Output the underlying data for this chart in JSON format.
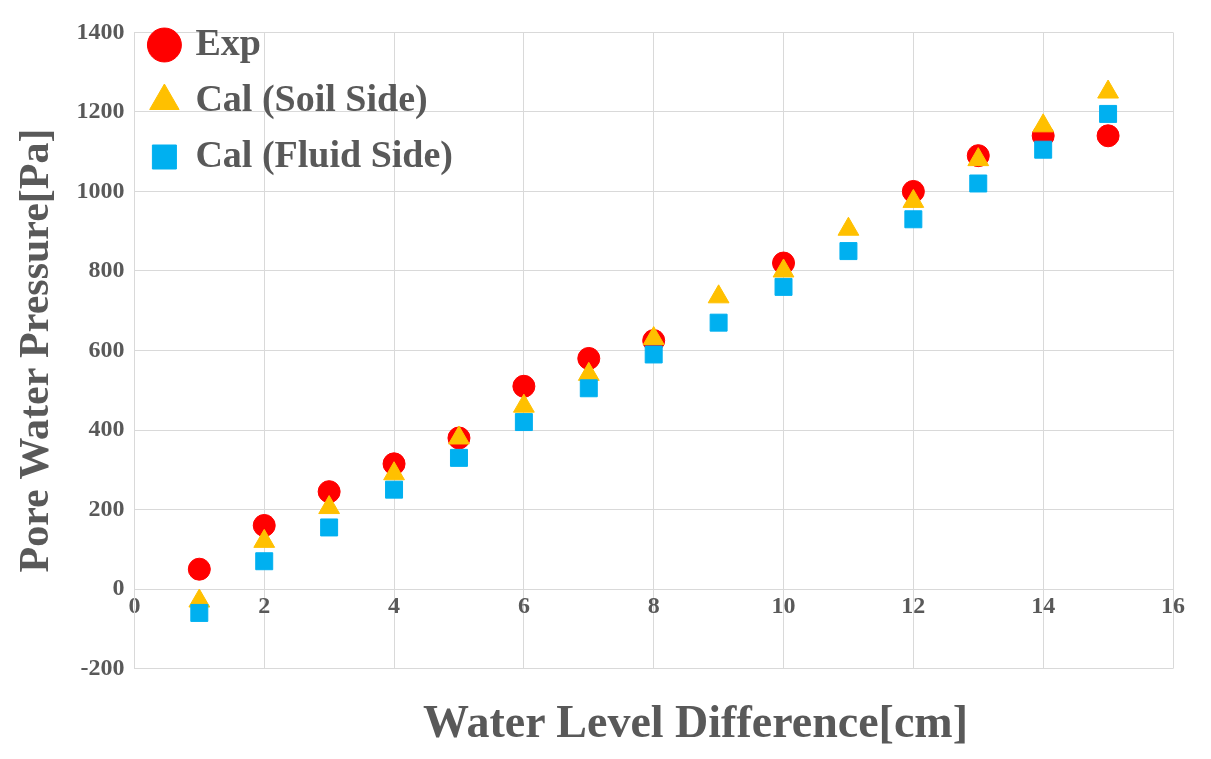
{
  "chart_data": {
    "type": "scatter",
    "xlabel": "Water Level Difference[cm]",
    "ylabel": "Pore Water Pressure[Pa]",
    "x": [
      1,
      2,
      3,
      4,
      5,
      6,
      7,
      8,
      9,
      10,
      11,
      12,
      13,
      14,
      15
    ],
    "series": [
      {
        "name": "Exp",
        "color": "#ff0000",
        "marker": "circle",
        "values": [
          50,
          160,
          245,
          315,
          380,
          510,
          580,
          625,
          null,
          820,
          null,
          1000,
          1090,
          1140,
          1140
        ]
      },
      {
        "name": "Cal (Soil Side)",
        "color": "#ffc000",
        "marker": "triangle",
        "values": [
          -30,
          120,
          205,
          290,
          380,
          460,
          540,
          630,
          735,
          800,
          905,
          975,
          1080,
          1165,
          1250
        ]
      },
      {
        "name": "Cal (Fluid Side)",
        "color": "#00b0f0",
        "marker": "square",
        "values": [
          -60,
          70,
          155,
          250,
          330,
          420,
          505,
          590,
          670,
          760,
          850,
          930,
          1020,
          1105,
          1195
        ]
      }
    ],
    "xlim": [
      0,
      16
    ],
    "xticks": [
      0,
      2,
      4,
      6,
      8,
      10,
      12,
      14,
      16
    ],
    "ylim": [
      -200,
      1400
    ],
    "yticks": [
      -200,
      0,
      200,
      400,
      600,
      800,
      1000,
      1200,
      1400
    ],
    "grid": true,
    "legend": "top left"
  }
}
